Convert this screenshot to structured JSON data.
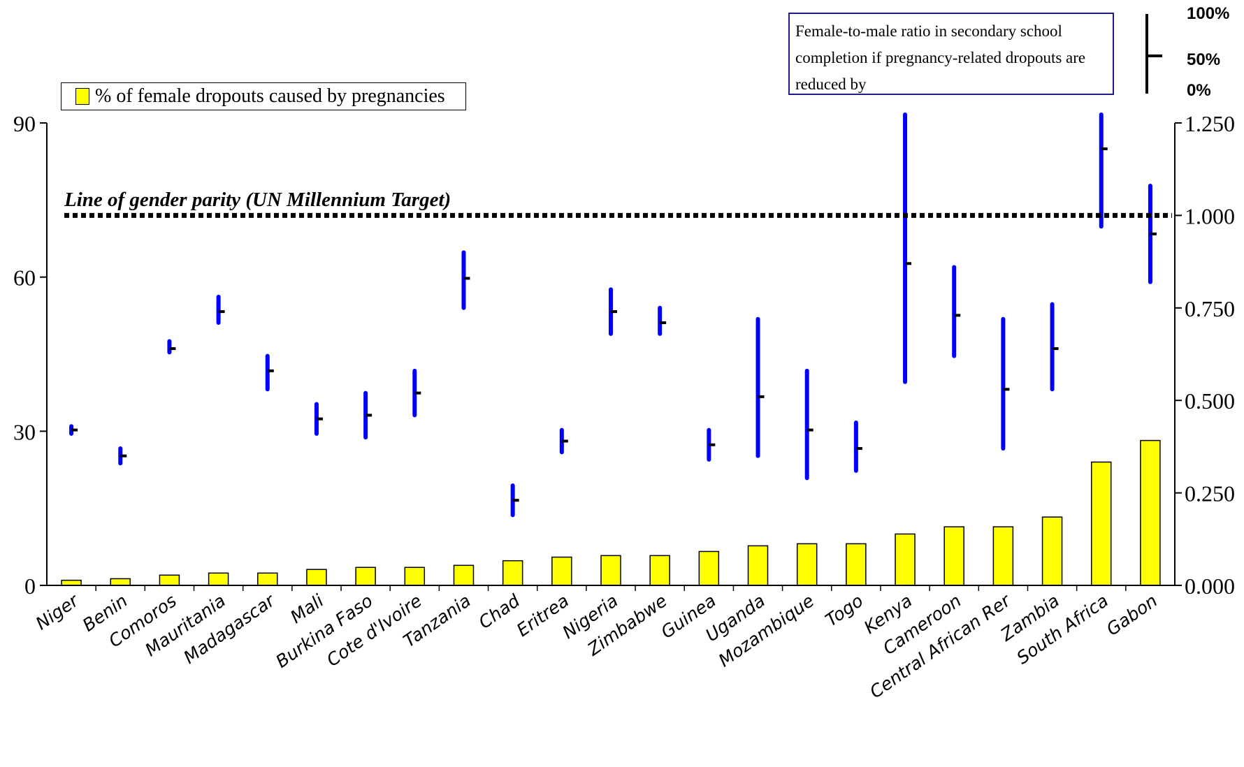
{
  "chart_data": {
    "type": "bar",
    "categories": [
      "Niger",
      "Benin",
      "Comoros",
      "Mauritania",
      "Madagascar",
      "Mali",
      "Burkina Faso",
      "Cote d'Ivoire",
      "Tanzania",
      "Chad",
      "Eritrea",
      "Nigeria",
      "Zimbabwe",
      "Guinea",
      "Uganda",
      "Mozambique",
      "Togo",
      "Kenya",
      "Cameroon",
      "Central African Rer",
      "Zambia",
      "South Africa",
      "Gabon"
    ],
    "series": [
      {
        "name": "% of female dropouts caused by pregnancies",
        "axis": "left",
        "color": "#ffff00",
        "values": [
          1,
          1.3,
          2,
          2.4,
          2.4,
          3.1,
          3.5,
          3.5,
          3.9,
          4.8,
          5.5,
          5.8,
          5.8,
          6.6,
          7.7,
          8.1,
          8.1,
          10,
          11.4,
          11.4,
          13.3,
          24,
          28.2
        ]
      },
      {
        "name": "Female-to-male ratio in secondary school completion if pregnancy-related dropouts are reduced by",
        "axis": "right",
        "type": "range",
        "color": "#0000ff",
        "low": [
          0.41,
          0.33,
          0.63,
          0.71,
          0.53,
          0.41,
          0.4,
          0.46,
          0.75,
          0.19,
          0.36,
          0.68,
          0.68,
          0.34,
          0.35,
          0.29,
          0.31,
          0.55,
          0.62,
          0.37,
          0.53,
          0.97,
          0.82
        ],
        "mid": [
          0.42,
          0.35,
          0.64,
          0.74,
          0.58,
          0.45,
          0.46,
          0.52,
          0.83,
          0.23,
          0.39,
          0.74,
          0.71,
          0.38,
          0.51,
          0.42,
          0.37,
          0.87,
          0.73,
          0.53,
          0.64,
          1.18,
          0.95
        ],
        "high": [
          0.43,
          0.37,
          0.66,
          0.78,
          0.62,
          0.49,
          0.52,
          0.58,
          0.9,
          0.27,
          0.42,
          0.8,
          0.75,
          0.42,
          0.72,
          0.58,
          0.44,
          1.28,
          0.86,
          0.72,
          0.76,
          1.28,
          1.08
        ]
      }
    ],
    "left_axis": {
      "ylim": [
        0,
        90
      ],
      "ticks": [
        "0",
        "30",
        "60",
        "90"
      ]
    },
    "right_axis": {
      "ylim": [
        0,
        1.25
      ],
      "ticks": [
        "0.000",
        "0.250",
        "0.500",
        "0.750",
        "1.000",
        "1.250"
      ]
    },
    "reference_line": {
      "value": 1.0,
      "axis": "right",
      "style": "dotted",
      "label": "Line of gender parity  (UN Millennium Target)"
    },
    "range_key": {
      "labels": [
        "100%",
        "50%",
        "0%"
      ]
    }
  },
  "legend": {
    "bars_label": "% of female dropouts caused by pregnancies",
    "ratio_label": "Female-to-male ratio in secondary school completion if pregnancy-related dropouts are reduced by"
  },
  "colors": {
    "bar": "#ffff00",
    "range": "#0000ff",
    "marker": "#000000",
    "ratio_box_border": "#1c1c8c"
  }
}
